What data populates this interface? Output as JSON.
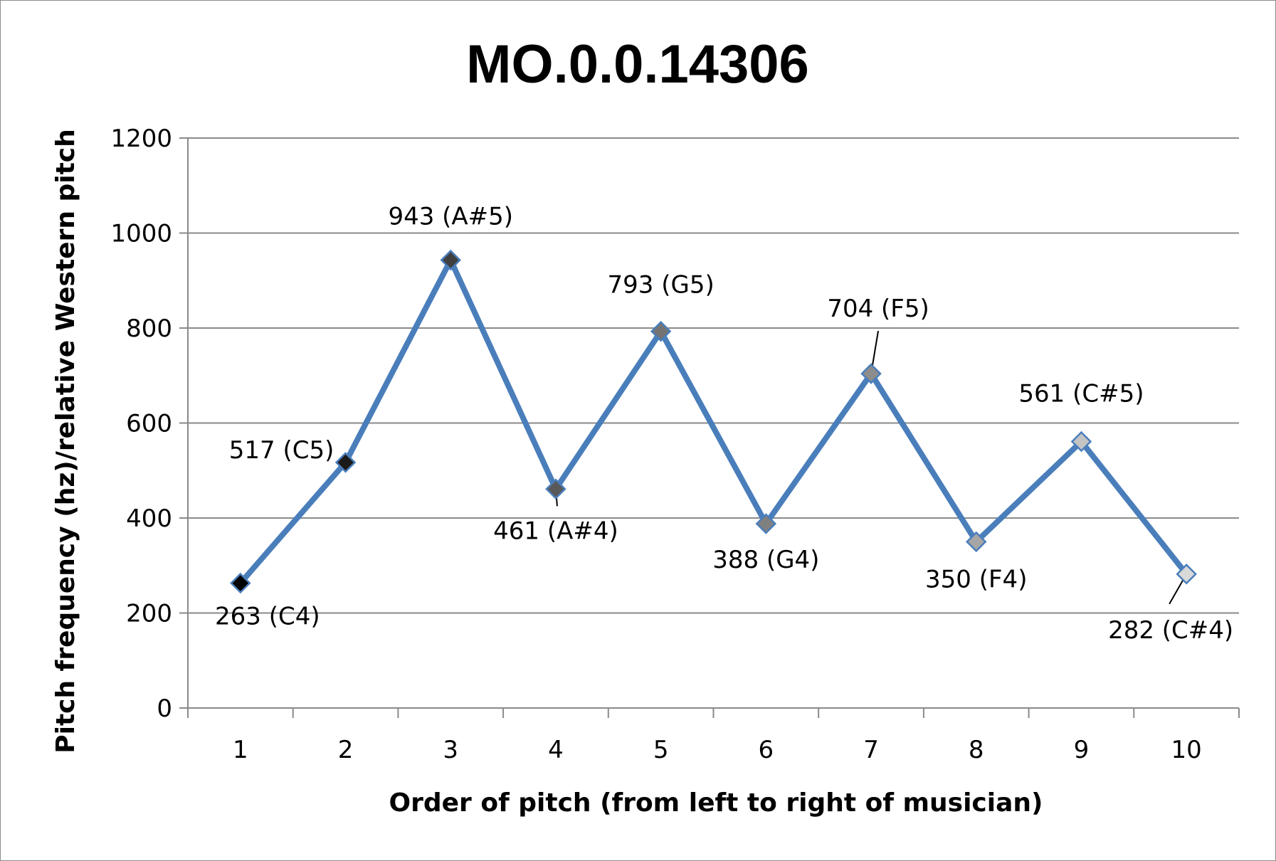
{
  "chart_data": {
    "type": "line",
    "title": "MO.0.0.14306",
    "xlabel": "Order of pitch (from left to right of musician)",
    "ylabel": "Pitch frequency (hz)/relative Western pitch",
    "ylim": [
      0,
      1200
    ],
    "y_ticks": [
      0,
      200,
      400,
      600,
      800,
      1000,
      1200
    ],
    "grid": "horizontal",
    "x": [
      1,
      2,
      3,
      4,
      5,
      6,
      7,
      8,
      9,
      10
    ],
    "categories": [
      "1",
      "2",
      "3",
      "4",
      "5",
      "6",
      "7",
      "8",
      "9",
      "10"
    ],
    "series": [
      {
        "values": [
          263,
          517,
          943,
          461,
          793,
          388,
          704,
          350,
          561,
          282
        ],
        "line_color": "#4a7ebb",
        "marker": "diamond",
        "marker_colors": [
          "#000000",
          "#1a1a1a",
          "#404040",
          "#595959",
          "#737373",
          "#808080",
          "#8c8c8c",
          "#a6a6a6",
          "#c4c4c4",
          "#d9d9d9"
        ]
      }
    ],
    "data_labels": [
      "263 (C4)",
      "517 (C5)",
      "943 (A#5)",
      "461 (A#4)",
      "793 (G5)",
      "388 (G4)",
      "704 (F5)",
      "350 (F4)",
      "561 (C#5)",
      "282 (C#4)"
    ]
  }
}
